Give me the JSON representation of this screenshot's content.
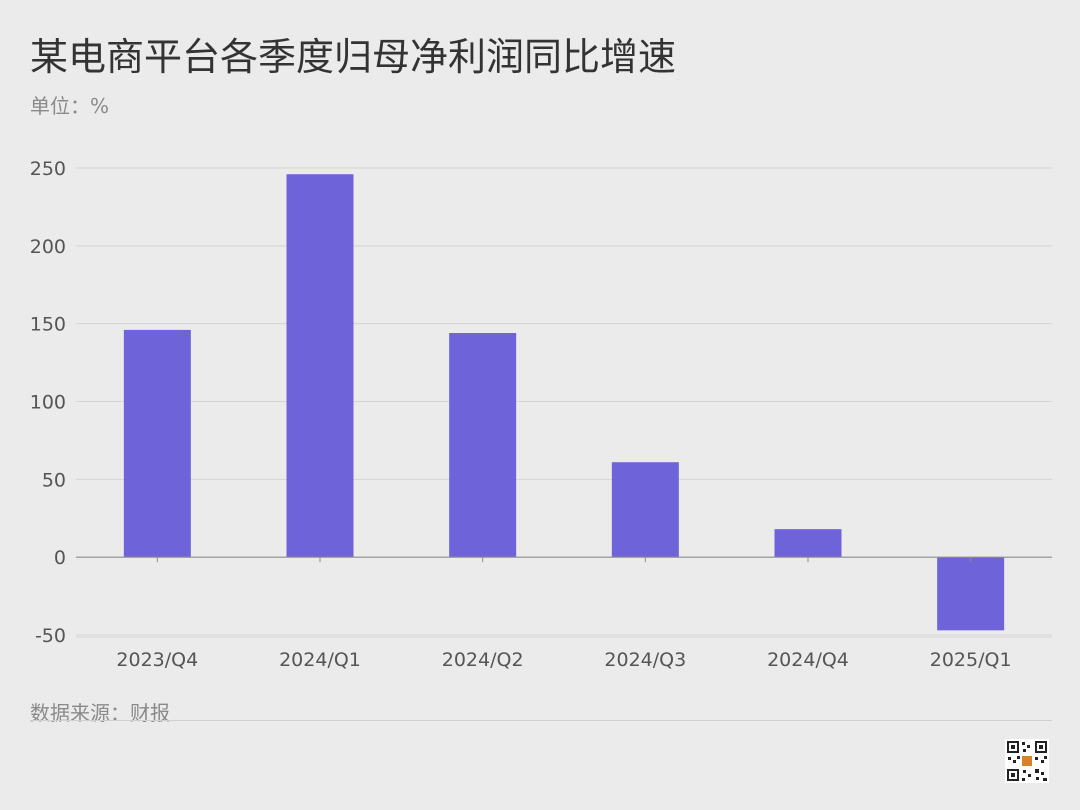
{
  "header": {
    "title": "某电商平台各季度归母净利润同比增速",
    "unit": "单位：%"
  },
  "footer": {
    "source": "数据来源：财报"
  },
  "colors": {
    "background": "#ebebeb",
    "bar": "#6f63d9",
    "grid": "#d4d4d4",
    "axis": "#8c8c8c",
    "text": "#555555"
  },
  "chart_data": {
    "type": "bar",
    "title": "某电商平台各季度归母净利润同比增速",
    "categories": [
      "2023/Q4",
      "2024/Q1",
      "2024/Q2",
      "2024/Q3",
      "2024/Q4",
      "2025/Q1"
    ],
    "values": [
      146,
      246,
      144,
      61,
      18,
      -47
    ],
    "ylim": [
      -50,
      250
    ],
    "yticks": [
      250,
      200,
      150,
      100,
      50,
      0,
      -50
    ],
    "grid": true,
    "legend": "none",
    "xlabel": "",
    "ylabel": ""
  }
}
